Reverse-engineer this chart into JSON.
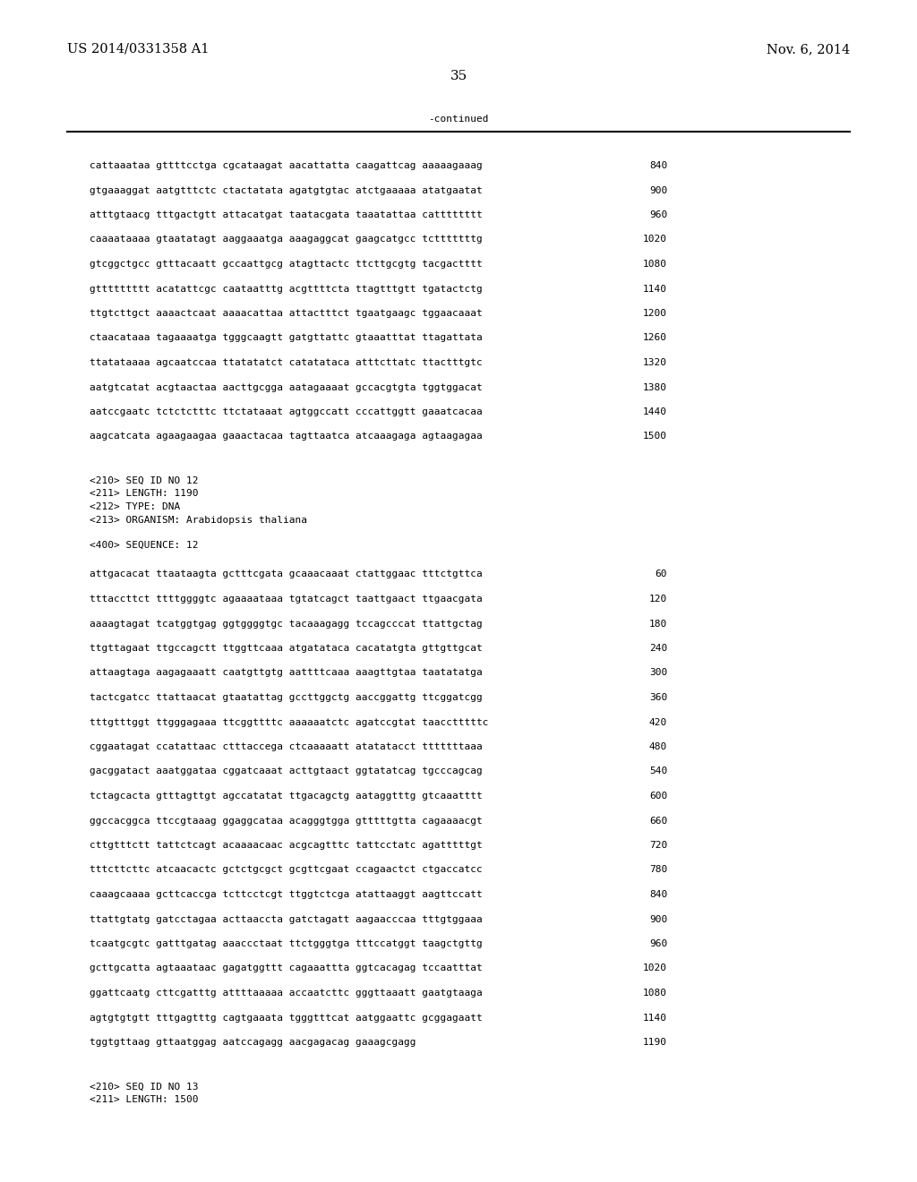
{
  "header_left": "US 2014/0331358 A1",
  "header_right": "Nov. 6, 2014",
  "page_number": "35",
  "continued_text": "-continued",
  "background_color": "#ffffff",
  "text_color": "#000000",
  "font_size_header": 10.5,
  "font_size_body": 8.0,
  "font_size_page": 11,
  "sequence_lines_top": [
    [
      "cattaaataa gttttcctga cgcataagat aacattatta caagattcag aaaaagaaag",
      "840"
    ],
    [
      "gtgaaaggat aatgtttctc ctactatata agatgtgtac atctgaaaaa atatgaatat",
      "900"
    ],
    [
      "atttgtaacg tttgactgtt attacatgat taatacgata taaatattaa catttttttt",
      "960"
    ],
    [
      "caaaataaaa gtaatatagt aaggaaatga aaagaggcat gaagcatgcc tctttttttg",
      "1020"
    ],
    [
      "gtcggctgcc gtttacaatt gccaattgcg atagttactc ttcttgcgtg tacgactttt",
      "1080"
    ],
    [
      "gttttttttt acatattcgc caataatttg acgttttcta ttagtttgtt tgatactctg",
      "1140"
    ],
    [
      "ttgtcttgct aaaactcaat aaaacattaa attactttct tgaatgaagc tggaacaaat",
      "1200"
    ],
    [
      "ctaacataaa tagaaaatga tgggcaagtt gatgttattc gtaaatttat ttagattata",
      "1260"
    ],
    [
      "ttatataaaa agcaatccaa ttatatatct catatataca atttcttatc ttactttgtc",
      "1320"
    ],
    [
      "aatgtcatat acgtaactaa aacttgcgga aatagaaaat gccacgtgta tggtggacat",
      "1380"
    ],
    [
      "aatccgaatc tctctctttc ttctataaat agtggccatt cccattggtt gaaatcacaa",
      "1440"
    ],
    [
      "aagcatcata agaagaagaa gaaactacaa tagttaatca atcaaagaga agtaagagaa",
      "1500"
    ]
  ],
  "seq_info_lines": [
    "<210> SEQ ID NO 12",
    "<211> LENGTH: 1190",
    "<212> TYPE: DNA",
    "<213> ORGANISM: Arabidopsis thaliana"
  ],
  "seq400_line": "<400> SEQUENCE: 12",
  "sequence_lines_mid": [
    [
      "attgacacat ttaataagta gctttcgata gcaaacaaat ctattggaac tttctgttca",
      "60"
    ],
    [
      "tttaccttct ttttggggtc agaaaataaa tgtatcagct taattgaact ttgaacgata",
      "120"
    ],
    [
      "aaaagtagat tcatggtgag ggtggggtgc tacaaagagg tccagcccat ttattgctag",
      "180"
    ],
    [
      "ttgttagaat ttgccagctt ttggttcaaa atgatataca cacatatgta gttgttgcat",
      "240"
    ],
    [
      "attaagtaga aagagaaatt caatgttgtg aattttcaaa aaagttgtaa taatatatga",
      "300"
    ],
    [
      "tactcgatcc ttattaacat gtaatattag gccttggctg aaccggattg ttcggatcgg",
      "360"
    ],
    [
      "tttgtttggt ttgggagaaa ttcggttttc aaaaaatctc agatccgtat taacctttttc",
      "420"
    ],
    [
      "cggaatagat ccatattaac ctttaccega ctcaaaaatt atatatacct tttttttaaa",
      "480"
    ],
    [
      "gacggatact aaatggataa cggatcaaat acttgtaact ggtatatcag tgcccagcag",
      "540"
    ],
    [
      "tctagcacta gtttagttgt agccatatat ttgacagctg aataggtttg gtcaaatttt",
      "600"
    ],
    [
      "ggccacggca ttccgtaaag ggaggcataa acagggtgga gtttttgtta cagaaaacgt",
      "660"
    ],
    [
      "cttgtttctt tattctcagt acaaaacaac acgcagtttc tattcctatc agatttttgt",
      "720"
    ],
    [
      "tttcttcttc atcaacactc gctctgcgct gcgttcgaat ccagaactct ctgaccatcc",
      "780"
    ],
    [
      "caaagcaaaa gcttcaccga tcttcctcgt ttggtctcga atattaaggt aagttccatt",
      "840"
    ],
    [
      "ttattgtatg gatcctagaa acttaaccta gatctagatt aagaacccaa tttgtggaaa",
      "900"
    ],
    [
      "tcaatgcgtc gatttgatag aaaccctaat ttctgggtga tttccatggt taagctgttg",
      "960"
    ],
    [
      "gcttgcatta agtaaataac gagatggttt cagaaattta ggtcacagag tccaatttat",
      "1020"
    ],
    [
      "ggattcaatg cttcgatttg attttaaaaa accaatcttc gggttaaatt gaatgtaaga",
      "1080"
    ],
    [
      "agtgtgtgtt tttgagtttg cagtgaaata tgggtttcat aatggaattc gcggagaatt",
      "1140"
    ],
    [
      "tggtgttaag gttaatggag aatccagagg aacgagacag gaaagcgagg",
      "1190"
    ]
  ],
  "footer_lines": [
    "<210> SEQ ID NO 13",
    "<211> LENGTH: 1500"
  ]
}
